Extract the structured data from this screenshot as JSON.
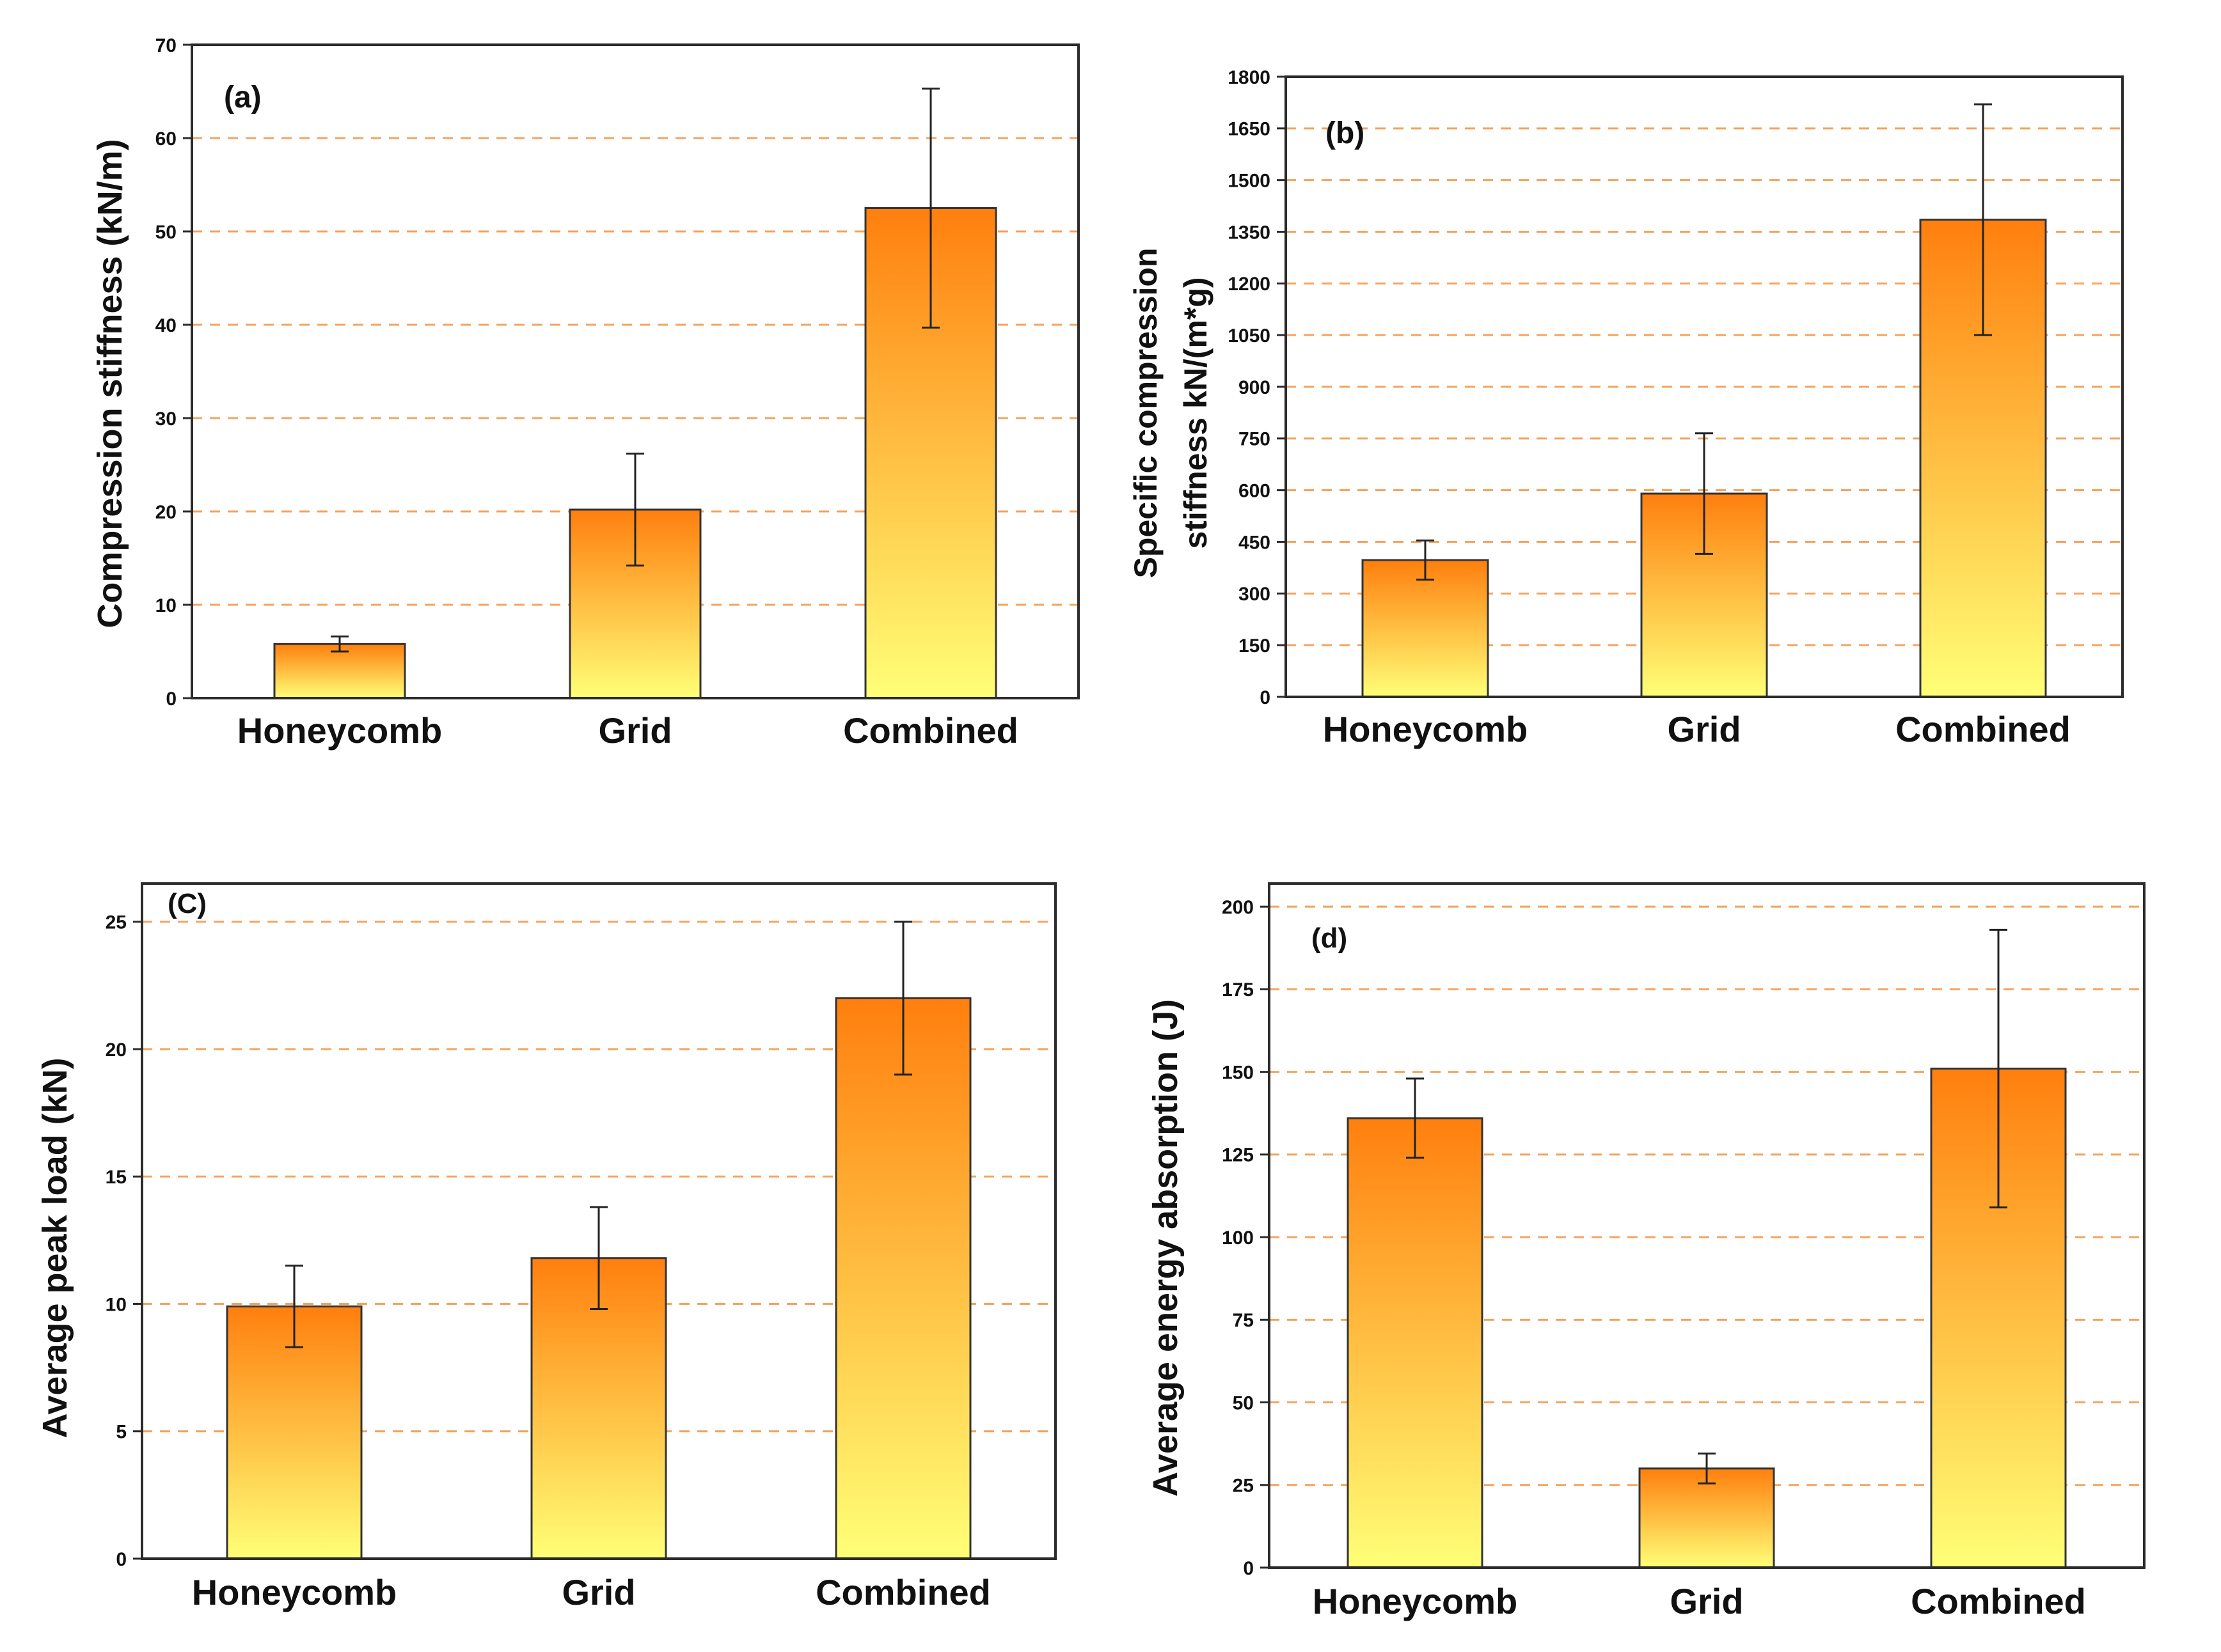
{
  "colors": {
    "bar_top": "#ff7f0e",
    "bar_bottom": "#ffff77",
    "grid": "#f5a35c",
    "axis": "#2b2b2b",
    "error_bar": "#222222"
  },
  "chart_data": [
    {
      "id": "a",
      "type": "bar",
      "panel_label": "(a)",
      "title": "",
      "xlabel": "",
      "ylabel": "Compression stiffness (kN/m)",
      "categories": [
        "Honeycomb",
        "Grid",
        "Combined"
      ],
      "values": [
        5.8,
        20.2,
        52.5
      ],
      "errors": [
        0.8,
        6.0,
        12.8
      ],
      "ylim": [
        0,
        70
      ],
      "yticks": [
        0,
        10,
        20,
        30,
        40,
        50,
        60,
        70
      ],
      "grid": true
    },
    {
      "id": "b",
      "type": "bar",
      "panel_label": "(b)",
      "title": "",
      "xlabel": "",
      "ylabel_lines": [
        "Specific compression",
        "stiffness kN/(m*g)"
      ],
      "categories": [
        "Honeycomb",
        "Grid",
        "Combined"
      ],
      "values": [
        397,
        590,
        1385
      ],
      "errors": [
        57,
        175,
        335
      ],
      "ylim": [
        0,
        1800
      ],
      "yticks": [
        0,
        150,
        300,
        450,
        600,
        750,
        900,
        1050,
        1200,
        1350,
        1500,
        1650,
        1800
      ],
      "grid": true
    },
    {
      "id": "c",
      "type": "bar",
      "panel_label": "(C)",
      "title": "",
      "xlabel": "",
      "ylabel": "Average peak load (kN)",
      "categories": [
        "Honeycomb",
        "Grid",
        "Combined"
      ],
      "values": [
        9.9,
        11.8,
        22.0
      ],
      "errors": [
        1.6,
        2.0,
        3.0
      ],
      "ylim": [
        0,
        26.5
      ],
      "yticks": [
        0,
        5,
        10,
        15,
        20,
        25
      ],
      "grid": true
    },
    {
      "id": "d",
      "type": "bar",
      "panel_label": "(d)",
      "title": "",
      "xlabel": "",
      "ylabel": "Average energy absorption (J)",
      "categories": [
        "Honeycomb",
        "Grid",
        "Combined"
      ],
      "values": [
        136,
        30,
        151
      ],
      "errors": [
        12,
        4.5,
        42
      ],
      "ylim": [
        0,
        207
      ],
      "yticks": [
        0,
        25,
        50,
        75,
        100,
        125,
        150,
        175,
        200
      ],
      "grid": true
    }
  ]
}
